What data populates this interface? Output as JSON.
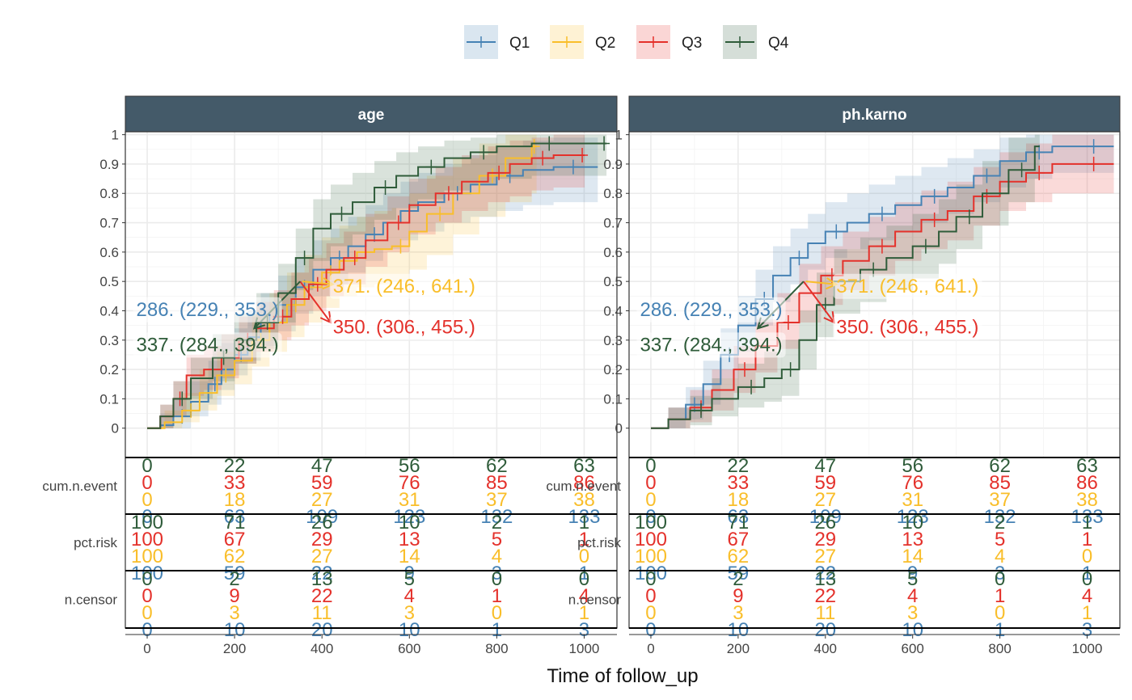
{
  "chart_data": {
    "type": "line",
    "subtype": "cumulative-incidence step curves with confidence bands and risk tables",
    "xlabel": "Time of follow_up",
    "legend": {
      "placement": "top",
      "entries": [
        {
          "name": "Q1",
          "color": "#4682B4"
        },
        {
          "name": "Q2",
          "color": "#F9BE2A"
        },
        {
          "name": "Q3",
          "color": "#E4312B"
        },
        {
          "name": "Q4",
          "color": "#2F5C3A"
        }
      ]
    },
    "x_ticks": [
      0,
      200,
      400,
      600,
      800,
      1000
    ],
    "x_range": [
      -50,
      1075
    ],
    "y_ticks": [
      0,
      0.1,
      0.2,
      0.3,
      0.4,
      0.5,
      0.6,
      0.7,
      0.8,
      0.9,
      1
    ],
    "y_tick_labels": [
      "0",
      "0.1",
      "0.2",
      "0.3",
      "0.4",
      "0.5",
      "0.6",
      "0.7",
      "0.8",
      "0.9",
      "1"
    ],
    "y_range": [
      -0.1,
      1.01
    ],
    "grid": true,
    "risk_rows": [
      "cum.n.event",
      "pct.risk",
      "n.censor"
    ],
    "panels": [
      {
        "strip": "age",
        "series": [
          {
            "name": "Q1",
            "x": [
              0,
              30,
              60,
              100,
              140,
              170,
              200,
              230,
              260,
              300,
              340,
              380,
              420,
              460,
              500,
              540,
              580,
              620,
              680,
              740,
              800,
              860,
              930,
              1020
            ],
            "y": [
              0,
              0.01,
              0.04,
              0.09,
              0.15,
              0.2,
              0.25,
              0.31,
              0.36,
              0.42,
              0.48,
              0.54,
              0.58,
              0.62,
              0.66,
              0.7,
              0.74,
              0.77,
              0.8,
              0.83,
              0.86,
              0.88,
              0.89,
              0.89
            ],
            "lower": [
              0,
              0,
              0,
              0.04,
              0.08,
              0.13,
              0.18,
              0.23,
              0.28,
              0.33,
              0.39,
              0.45,
              0.49,
              0.53,
              0.57,
              0.61,
              0.64,
              0.67,
              0.7,
              0.72,
              0.74,
              0.76,
              0.77,
              0.77
            ],
            "upper": [
              0,
              0.05,
              0.1,
              0.16,
              0.23,
              0.29,
              0.34,
              0.4,
              0.46,
              0.52,
              0.58,
              0.64,
              0.68,
              0.72,
              0.76,
              0.8,
              0.84,
              0.87,
              0.9,
              0.93,
              0.96,
              0.98,
              0.99,
              0.99
            ]
          },
          {
            "name": "Q2",
            "x": [
              0,
              40,
              80,
              120,
              160,
              200,
              240,
              280,
              320,
              360,
              400,
              440,
              480,
              520,
              560,
              600,
              640,
              700,
              760,
              820,
              880
            ],
            "y": [
              0,
              0.02,
              0.06,
              0.12,
              0.18,
              0.23,
              0.3,
              0.36,
              0.42,
              0.48,
              0.53,
              0.57,
              0.6,
              0.61,
              0.62,
              0.67,
              0.73,
              0.8,
              0.86,
              0.92,
              0.96
            ],
            "lower": [
              0,
              0,
              0.02,
              0.06,
              0.11,
              0.15,
              0.21,
              0.26,
              0.31,
              0.36,
              0.41,
              0.45,
              0.48,
              0.49,
              0.5,
              0.54,
              0.59,
              0.66,
              0.72,
              0.77,
              0.8
            ],
            "upper": [
              0,
              0.06,
              0.12,
              0.2,
              0.26,
              0.31,
              0.39,
              0.46,
              0.53,
              0.59,
              0.65,
              0.69,
              0.72,
              0.74,
              0.75,
              0.8,
              0.86,
              0.92,
              0.97,
              1,
              1
            ]
          },
          {
            "name": "Q3",
            "x": [
              0,
              30,
              60,
              90,
              130,
              170,
              210,
              250,
              290,
              330,
              370,
              410,
              450,
              500,
              550,
              600,
              660,
              720,
              780,
              830,
              880,
              930,
              990
            ],
            "y": [
              0,
              0.04,
              0.1,
              0.18,
              0.2,
              0.24,
              0.3,
              0.34,
              0.38,
              0.44,
              0.49,
              0.54,
              0.58,
              0.64,
              0.7,
              0.76,
              0.8,
              0.84,
              0.87,
              0.9,
              0.92,
              0.93,
              0.93
            ],
            "lower": [
              0,
              0,
              0.04,
              0.11,
              0.13,
              0.17,
              0.22,
              0.26,
              0.3,
              0.35,
              0.4,
              0.45,
              0.49,
              0.55,
              0.6,
              0.66,
              0.7,
              0.74,
              0.77,
              0.79,
              0.81,
              0.82,
              0.82
            ],
            "upper": [
              0,
              0.08,
              0.16,
              0.25,
              0.28,
              0.32,
              0.38,
              0.43,
              0.47,
              0.53,
              0.58,
              0.63,
              0.67,
              0.73,
              0.79,
              0.85,
              0.89,
              0.93,
              0.96,
              0.98,
              0.99,
              1,
              1
            ]
          },
          {
            "name": "Q4",
            "x": [
              0,
              30,
              60,
              100,
              150,
              200,
              250,
              300,
              340,
              380,
              420,
              470,
              520,
              570,
              620,
              680,
              740,
              800,
              880,
              960,
              1040
            ],
            "y": [
              0,
              0.04,
              0.1,
              0.17,
              0.24,
              0.3,
              0.36,
              0.46,
              0.58,
              0.68,
              0.73,
              0.77,
              0.82,
              0.86,
              0.89,
              0.92,
              0.94,
              0.96,
              0.97,
              0.97,
              0.97
            ],
            "lower": [
              0,
              0,
              0.04,
              0.1,
              0.16,
              0.22,
              0.27,
              0.36,
              0.47,
              0.57,
              0.62,
              0.66,
              0.71,
              0.75,
              0.78,
              0.81,
              0.83,
              0.85,
              0.86,
              0.86,
              0.86
            ],
            "upper": [
              0,
              0.08,
              0.16,
              0.24,
              0.32,
              0.39,
              0.46,
              0.56,
              0.68,
              0.78,
              0.83,
              0.87,
              0.91,
              0.94,
              0.96,
              0.98,
              0.99,
              1,
              1,
              1,
              1
            ]
          }
        ]
      },
      {
        "strip": "ph.karno",
        "series": [
          {
            "name": "Q1",
            "x": [
              0,
              40,
              80,
              120,
              160,
              200,
              240,
              280,
              320,
              360,
              400,
              450,
              500,
              560,
              620,
              680,
              740,
              800,
              860,
              920,
              980,
              1050
            ],
            "y": [
              0,
              0.03,
              0.08,
              0.15,
              0.25,
              0.35,
              0.44,
              0.52,
              0.58,
              0.63,
              0.67,
              0.7,
              0.73,
              0.76,
              0.79,
              0.82,
              0.86,
              0.91,
              0.94,
              0.96,
              0.96,
              0.96
            ],
            "lower": [
              0,
              0,
              0.03,
              0.08,
              0.17,
              0.26,
              0.35,
              0.43,
              0.49,
              0.54,
              0.58,
              0.61,
              0.64,
              0.67,
              0.7,
              0.73,
              0.77,
              0.82,
              0.85,
              0.87,
              0.87,
              0.87
            ],
            "upper": [
              0,
              0.07,
              0.14,
              0.23,
              0.34,
              0.45,
              0.54,
              0.62,
              0.68,
              0.73,
              0.77,
              0.8,
              0.83,
              0.86,
              0.89,
              0.92,
              0.95,
              0.99,
              1,
              1,
              1,
              1
            ]
          },
          {
            "name": "Q3",
            "x": [
              0,
              40,
              90,
              140,
              190,
              240,
              290,
              340,
              390,
              440,
              500,
              560,
              620,
              680,
              740,
              800,
              860,
              920,
              980,
              1050
            ],
            "y": [
              0,
              0.03,
              0.07,
              0.13,
              0.2,
              0.28,
              0.36,
              0.46,
              0.52,
              0.57,
              0.62,
              0.67,
              0.71,
              0.74,
              0.79,
              0.84,
              0.87,
              0.9,
              0.9,
              0.9
            ],
            "lower": [
              0,
              0,
              0.02,
              0.06,
              0.12,
              0.19,
              0.27,
              0.36,
              0.42,
              0.47,
              0.52,
              0.57,
              0.61,
              0.64,
              0.69,
              0.74,
              0.77,
              0.8,
              0.8,
              0.8
            ],
            "upper": [
              0,
              0.07,
              0.13,
              0.2,
              0.28,
              0.37,
              0.46,
              0.56,
              0.62,
              0.67,
              0.72,
              0.77,
              0.81,
              0.84,
              0.89,
              0.94,
              0.97,
              1,
              1,
              1
            ]
          },
          {
            "name": "Q4",
            "x": [
              0,
              40,
              90,
              140,
              200,
              260,
              300,
              340,
              380,
              420,
              480,
              540,
              600,
              660,
              700,
              760,
              820,
              880
            ],
            "y": [
              0,
              0.03,
              0.06,
              0.1,
              0.14,
              0.17,
              0.2,
              0.3,
              0.42,
              0.5,
              0.54,
              0.58,
              0.62,
              0.67,
              0.72,
              0.8,
              0.88,
              0.96
            ],
            "lower": [
              0,
              0,
              0.01,
              0.04,
              0.07,
              0.09,
              0.11,
              0.2,
              0.31,
              0.39,
              0.43,
              0.47,
              0.51,
              0.56,
              0.61,
              0.69,
              0.77,
              0.85
            ],
            "upper": [
              0,
              0.07,
              0.11,
              0.17,
              0.22,
              0.26,
              0.3,
              0.4,
              0.53,
              0.61,
              0.65,
              0.69,
              0.73,
              0.78,
              0.83,
              0.91,
              0.99,
              1
            ]
          }
        ]
      }
    ],
    "annotations": [
      {
        "text": "286. (229., 353.)",
        "color": "#4682B4",
        "x": -25,
        "y": 0.4
      },
      {
        "text": "371. (246., 641.)",
        "color": "#F9BE2A",
        "x": 425,
        "y": 0.48
      },
      {
        "text": "350. (306., 455.)",
        "color": "#E4312B",
        "x": 425,
        "y": 0.34
      },
      {
        "text": "337. (284., 394.)",
        "color": "#2F5C3A",
        "x": -25,
        "y": 0.28
      }
    ],
    "arrows": [
      {
        "color": "#E4312B",
        "x1": 350,
        "y1": 0.5,
        "x2": 420,
        "y2": 0.36
      },
      {
        "color": "#2F5C3A",
        "x1": 350,
        "y1": 0.5,
        "x2": 245,
        "y2": 0.34
      },
      {
        "color": "#F9BE2A",
        "x1": 355,
        "y1": 0.5,
        "x2": 425,
        "y2": 0.49
      }
    ],
    "risk_table": {
      "times": [
        0,
        200,
        400,
        600,
        800,
        1000
      ],
      "cum.n.event": {
        "Q4": [
          0,
          22,
          47,
          56,
          62,
          63
        ],
        "Q3": [
          0,
          33,
          59,
          76,
          85,
          86
        ],
        "Q2": [
          0,
          18,
          27,
          31,
          37,
          38
        ],
        "Q1": [
          0,
          63,
          109,
          123,
          132,
          133
        ]
      },
      "pct.risk": {
        "Q4": [
          100,
          71,
          26,
          10,
          2,
          1
        ],
        "Q3": [
          100,
          67,
          29,
          13,
          5,
          1
        ],
        "Q2": [
          100,
          62,
          27,
          14,
          4,
          0
        ],
        "Q1": [
          100,
          59,
          22,
          9,
          3,
          1
        ]
      },
      "n.censor": {
        "Q4": [
          0,
          2,
          13,
          5,
          0,
          0
        ],
        "Q3": [
          0,
          9,
          22,
          4,
          1,
          4
        ],
        "Q2": [
          0,
          3,
          11,
          3,
          0,
          1
        ],
        "Q1": [
          0,
          10,
          20,
          10,
          1,
          3
        ]
      }
    }
  }
}
